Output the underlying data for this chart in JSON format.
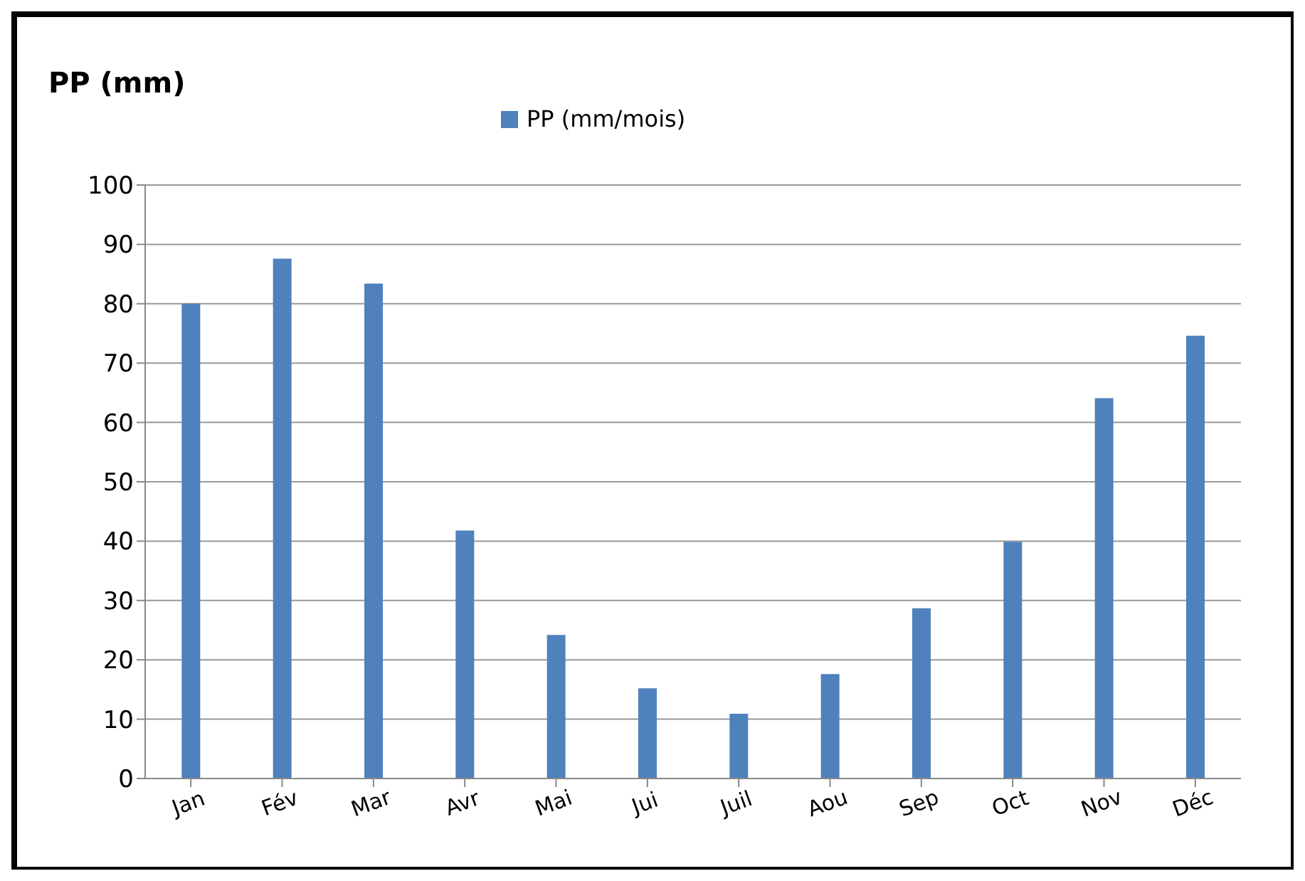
{
  "chart_data": {
    "type": "bar",
    "title": "PP (mm)",
    "categories": [
      "Jan",
      "Fév",
      "Mar",
      "Avr",
      "Mai",
      "Jui",
      "Juil",
      "Aou",
      "Sep",
      "Oct",
      "Nov",
      "Déc"
    ],
    "series": [
      {
        "name": "PP (mm/mois)",
        "color": "#4f81bd",
        "values": [
          80,
          87.6,
          83.4,
          41.8,
          24.2,
          15.2,
          10.9,
          17.6,
          28.7,
          39.9,
          64.1,
          74.6
        ]
      }
    ],
    "ylim": [
      0,
      100
    ],
    "yticks": [
      0,
      10,
      20,
      30,
      40,
      50,
      60,
      70,
      80,
      90,
      100
    ],
    "grid": "y",
    "legend": "top"
  }
}
